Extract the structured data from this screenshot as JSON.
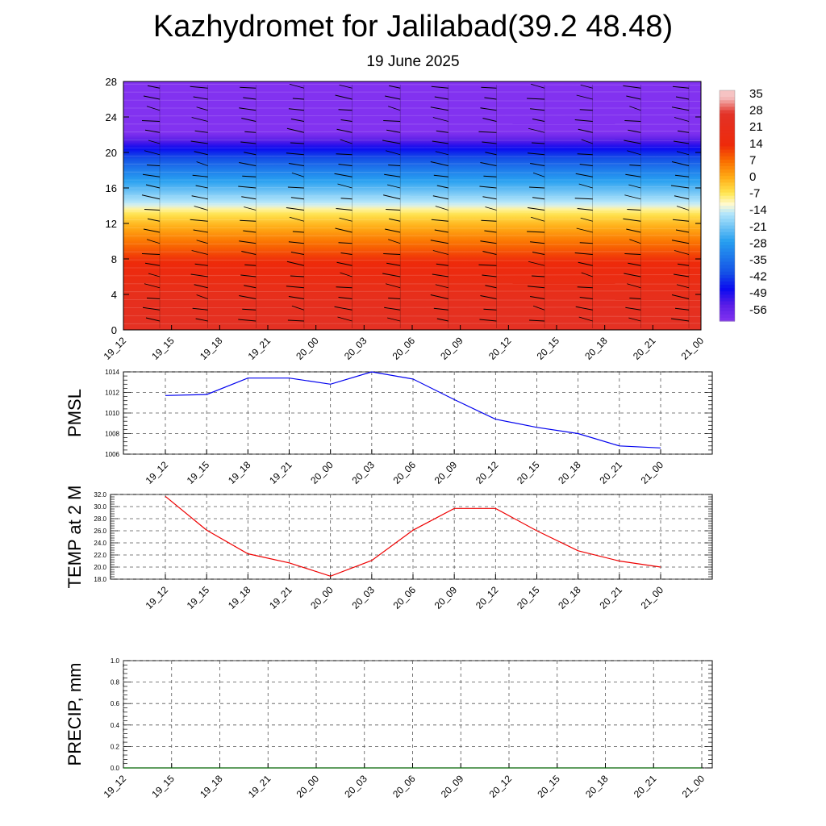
{
  "title": "Kazhydromet for Jalilabad(39.2 48.48)",
  "subtitle": "19 June 2025",
  "colors": {
    "pmsl_line": "#0000ee",
    "temp_line": "#ee0000",
    "precip_line": "#006400",
    "grid": "#555555"
  },
  "chart_data": [
    {
      "type": "heatmap",
      "title": "",
      "xlabel": "",
      "ylabel": "",
      "x": [
        "19_12",
        "19_15",
        "19_18",
        "19_21",
        "20_00",
        "20_03",
        "20_06",
        "20_09",
        "20_12",
        "20_15",
        "20_18",
        "20_21",
        "21_00"
      ],
      "yticks": [
        0,
        4,
        8,
        12,
        16,
        20,
        24,
        28
      ],
      "ylim": [
        0,
        28
      ],
      "colorbar": {
        "labels": [
          "35",
          "28",
          "21",
          "14",
          "7",
          "0",
          "-7",
          "-14",
          "-21",
          "-28",
          "-35",
          "-42",
          "-49",
          "-56"
        ],
        "stops": [
          {
            "v": 35,
            "c": "#f6c3c3"
          },
          {
            "v": 28,
            "c": "#e23228"
          },
          {
            "v": 14,
            "c": "#ee2a0a"
          },
          {
            "v": 7,
            "c": "#fa6e00"
          },
          {
            "v": 0,
            "c": "#ffaa14"
          },
          {
            "v": -7,
            "c": "#ffe650"
          },
          {
            "v": -12,
            "c": "#fffad2"
          },
          {
            "v": -16,
            "c": "#b4e6fa"
          },
          {
            "v": -28,
            "c": "#28a0f0"
          },
          {
            "v": -42,
            "c": "#1450e6"
          },
          {
            "v": -49,
            "c": "#0a0af0"
          },
          {
            "v": -56,
            "c": "#5a1ee6"
          },
          {
            "v": -63,
            "c": "#8232f0"
          }
        ]
      },
      "temperature_profile": [
        {
          "h": 0,
          "t": 26
        },
        {
          "h": 4,
          "t": 22
        },
        {
          "h": 8,
          "t": 13
        },
        {
          "h": 10,
          "t": 6
        },
        {
          "h": 12,
          "t": -2
        },
        {
          "h": 13.5,
          "t": -9
        },
        {
          "h": 14,
          "t": -14
        },
        {
          "h": 16,
          "t": -24
        },
        {
          "h": 18,
          "t": -34
        },
        {
          "h": 20,
          "t": -46
        },
        {
          "h": 21,
          "t": -53
        },
        {
          "h": 21.6,
          "t": -58
        },
        {
          "h": 22.2,
          "t": -63
        },
        {
          "h": 28,
          "t": -65
        }
      ]
    },
    {
      "type": "line",
      "ylabel": "PMSL",
      "xlabel": "",
      "categories": [
        "19_12",
        "19_15",
        "19_18",
        "19_21",
        "20_00",
        "20_03",
        "20_06",
        "20_09",
        "20_12",
        "20_15",
        "20_18",
        "20_21",
        "21_00"
      ],
      "values": [
        1011.7,
        1011.8,
        1013.4,
        1013.4,
        1012.8,
        1014.0,
        1013.3,
        1011.3,
        1009.4,
        1008.6,
        1008.0,
        1006.8,
        1006.6
      ],
      "ylim": [
        1006,
        1014
      ],
      "yticks": [
        "1006",
        "1008",
        "1010",
        "1012",
        "1014"
      ],
      "grid": true
    },
    {
      "type": "line",
      "ylabel": "TEMP at 2 M",
      "xlabel": "",
      "categories": [
        "19_12",
        "19_15",
        "19_18",
        "19_21",
        "20_00",
        "20_03",
        "20_06",
        "20_09",
        "20_12",
        "20_15",
        "20_18",
        "20_21",
        "21_00"
      ],
      "values": [
        31.7,
        26.1,
        22.2,
        20.7,
        18.5,
        21.1,
        26.1,
        29.7,
        29.7,
        26.0,
        22.7,
        21.0,
        20.0
      ],
      "ylim": [
        18,
        32
      ],
      "yticks": [
        "18.0",
        "20.0",
        "22.0",
        "24.0",
        "26.0",
        "28.0",
        "30.0",
        "32.0"
      ],
      "grid": true
    },
    {
      "type": "line",
      "ylabel": "PRECIP, mm",
      "xlabel": "",
      "categories": [
        "19_12",
        "19_15",
        "19_18",
        "19_21",
        "20_00",
        "20_03",
        "20_06",
        "20_09",
        "20_12",
        "20_15",
        "20_18",
        "20_21",
        "21_00"
      ],
      "values": [
        0,
        0,
        0,
        0,
        0,
        0,
        0,
        0,
        0,
        0,
        0,
        0,
        0
      ],
      "ylim": [
        0,
        1
      ],
      "yticks": [
        "0.0",
        "0.2",
        "0.4",
        "0.6",
        "0.8",
        "1.0"
      ],
      "grid": true
    }
  ]
}
